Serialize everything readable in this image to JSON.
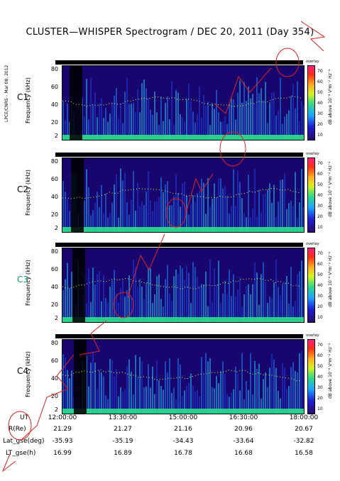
{
  "title": "CLUSTER—WHISPER Spectrogram / DEC 20, 2011 (Day 354)",
  "credit": "LPCE/CNRS – Mar 08, 2012",
  "colors": {
    "background": "#18066e",
    "signal": "#1aa6ff",
    "high": "#ff3010",
    "strip_mark": "#36e08a"
  },
  "chart_data": {
    "type": "heatmap",
    "x_label": "UT",
    "x_ticks": [
      "12:00:00",
      "13:30:00",
      "15:00:00",
      "16:30:00",
      "18:00:00"
    ],
    "y_label": "Frequency (kHz)",
    "y_ticks": [
      "80",
      "60",
      "40",
      "20",
      "2"
    ],
    "y_range": [
      2,
      80
    ],
    "colorbar": {
      "label": "dB above 10⁻⁸ V²m⁻² Hz⁻¹",
      "ticks": [
        "70",
        "60",
        "50",
        "40",
        "30",
        "20",
        "10"
      ],
      "range": [
        10,
        70
      ]
    },
    "panels": [
      {
        "name": "C1",
        "label_color": "#000000"
      },
      {
        "name": "C2",
        "label_color": "#000000"
      },
      {
        "name": "C3",
        "label_color": "#1aa36b"
      },
      {
        "name": "C4",
        "label_color": "#000000"
      }
    ],
    "overlay_tag": "overlay",
    "orbit": [
      {
        "label": "R(Re)",
        "values": [
          "21.29",
          "21.27",
          "21.16",
          "20.96",
          "20.67"
        ]
      },
      {
        "label": "Lat_gse(deg)",
        "values": [
          "-35.93",
          "-35.19",
          "-34.43",
          "-33.64",
          "-32.82"
        ]
      },
      {
        "label": "LT_gse(h)",
        "values": [
          "16.99",
          "16.89",
          "16.78",
          "16.68",
          "16.58"
        ]
      }
    ]
  }
}
